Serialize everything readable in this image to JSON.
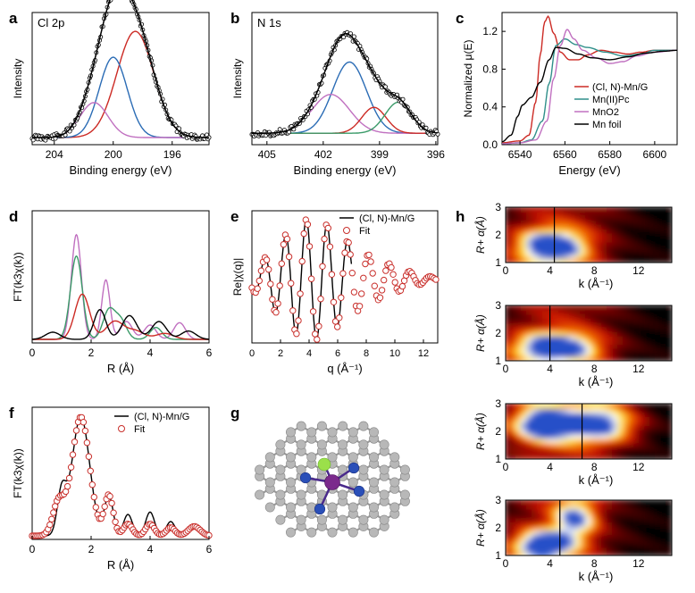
{
  "figure": {
    "colors": {
      "red": "#cc2a24",
      "blue": "#2b6cb5",
      "purple": "#c070c0",
      "green": "#3a9a68",
      "teal": "#2f8f8a",
      "black": "#000000",
      "circle": "#c9302c"
    }
  },
  "chart_data": [
    {
      "panel": "a",
      "type": "scatter",
      "title": "Cl 2p",
      "xlabel": "Binding energy (eV)",
      "ylabel": "Intensity",
      "xlim": [
        205.5,
        193.5
      ],
      "xticks": [
        "204",
        "200",
        "196"
      ],
      "xtick_values": [
        204,
        200,
        196
      ],
      "series": [
        {
          "name": "data",
          "style": "open-circles",
          "color": "black"
        },
        {
          "name": "envelope",
          "color": "black",
          "line_style": "solid"
        },
        {
          "name": "peak-198.5",
          "color": "red",
          "center": 198.5,
          "height": 0.82,
          "width": 1.25
        },
        {
          "name": "peak-200.0",
          "color": "blue",
          "center": 200.0,
          "height": 0.62,
          "width": 0.95
        },
        {
          "name": "peak-201.3",
          "color": "purple",
          "center": 201.3,
          "height": 0.27,
          "width": 0.95
        }
      ],
      "baseline": 0.1
    },
    {
      "panel": "b",
      "type": "scatter",
      "title": "N 1s",
      "xlabel": "Binding energy (eV)",
      "ylabel": "Intensity",
      "xlim": [
        405.8,
        395.9
      ],
      "xticks": [
        "405",
        "402",
        "399",
        "396"
      ],
      "xtick_values": [
        405,
        402,
        399,
        396
      ],
      "series": [
        {
          "name": "data",
          "style": "open-circles",
          "color": "black"
        },
        {
          "name": "envelope",
          "color": "black"
        },
        {
          "name": "peak-400.6",
          "color": "blue",
          "center": 400.6,
          "height": 0.55,
          "width": 0.9
        },
        {
          "name": "peak-401.6",
          "color": "purple",
          "center": 401.6,
          "height": 0.3,
          "width": 1.0
        },
        {
          "name": "peak-399.3",
          "color": "red",
          "center": 399.3,
          "height": 0.2,
          "width": 0.65
        },
        {
          "name": "peak-398.0",
          "color": "green",
          "center": 398.0,
          "height": 0.24,
          "width": 0.7
        }
      ],
      "baseline": 0.16
    },
    {
      "panel": "c",
      "type": "line",
      "title": "",
      "xlabel": "Energy (eV)",
      "ylabel": "Normalized μ(E)",
      "xlim": [
        6532,
        6610
      ],
      "ylim": [
        0,
        1.4
      ],
      "xticks": [
        "6540",
        "6560",
        "6580",
        "6600"
      ],
      "xtick_values": [
        6540,
        6560,
        6580,
        6600
      ],
      "yticks": [
        "0.0",
        "0.4",
        "0.8",
        "1.2"
      ],
      "ytick_values": [
        0,
        0.4,
        0.8,
        1.2
      ],
      "legend": [
        {
          "label": "(Cl, N)-Mn/G",
          "color": "red"
        },
        {
          "label": "Mn(II)Pc",
          "color": "teal"
        },
        {
          "label": "MnO2",
          "color": "purple"
        },
        {
          "label": "Mn foil",
          "color": "black"
        }
      ],
      "series": [
        {
          "name": "(Cl, N)-Mn/G",
          "color": "red",
          "x": [
            6532,
            6540,
            6544,
            6547,
            6549,
            6551,
            6552.5,
            6555,
            6558,
            6562,
            6566,
            6570,
            6576,
            6582,
            6588,
            6594,
            6600,
            6610
          ],
          "y": [
            0.02,
            0.04,
            0.1,
            0.45,
            0.95,
            1.3,
            1.36,
            1.18,
            0.98,
            0.9,
            0.9,
            0.95,
            1.0,
            0.98,
            0.96,
            0.98,
            1.0,
            1.0
          ]
        },
        {
          "name": "Mn(II)Pc",
          "color": "teal",
          "x": [
            6532,
            6540,
            6545,
            6550,
            6553,
            6556,
            6560,
            6565,
            6570,
            6578,
            6586,
            6594,
            6600,
            6610
          ],
          "y": [
            0.01,
            0.02,
            0.05,
            0.25,
            0.65,
            1.05,
            1.12,
            1.06,
            1.03,
            0.98,
            0.94,
            0.96,
            1.0,
            1.0
          ]
        },
        {
          "name": "MnO2",
          "color": "purple",
          "x": [
            6532,
            6540,
            6547,
            6552,
            6555,
            6558,
            6561,
            6564,
            6568,
            6574,
            6580,
            6586,
            6592,
            6600,
            6610
          ],
          "y": [
            0.01,
            0.02,
            0.05,
            0.25,
            0.7,
            1.05,
            1.22,
            1.12,
            1.0,
            0.92,
            0.86,
            0.88,
            0.94,
            0.98,
            1.0
          ]
        },
        {
          "name": "Mn foil",
          "color": "black",
          "x": [
            6532,
            6536,
            6539,
            6541,
            6545,
            6549,
            6553,
            6556,
            6560,
            6566,
            6572,
            6580,
            6588,
            6596,
            6604,
            6610
          ],
          "y": [
            0.03,
            0.1,
            0.3,
            0.42,
            0.5,
            0.66,
            0.9,
            1.03,
            1.02,
            0.96,
            0.92,
            0.9,
            0.93,
            0.97,
            0.99,
            1.0
          ]
        }
      ]
    },
    {
      "panel": "d",
      "type": "line",
      "title": "",
      "xlabel": "R (Å)",
      "ylabel": "FT(k3χ(k))",
      "xlim": [
        0,
        6
      ],
      "xticks": [
        "0",
        "2",
        "4",
        "6"
      ],
      "xtick_values": [
        0,
        2,
        4,
        6
      ],
      "series": [
        {
          "name": "MnO2",
          "color": "purple",
          "peaks": [
            [
              1.5,
              0.88,
              0.17
            ],
            [
              2.5,
              0.5,
              0.14
            ],
            [
              3.2,
              0.15,
              0.2
            ],
            [
              4.0,
              0.12,
              0.2
            ],
            [
              5.0,
              0.14,
              0.2
            ]
          ]
        },
        {
          "name": "Mn(II)Pc",
          "color": "green",
          "peaks": [
            [
              1.5,
              0.7,
              0.2
            ],
            [
              2.6,
              0.24,
              0.2
            ],
            [
              3.0,
              0.16,
              0.2
            ],
            [
              4.2,
              0.1,
              0.2
            ]
          ]
        },
        {
          "name": "(Cl, N)-Mn/G",
          "color": "red",
          "peaks": [
            [
              1.7,
              0.38,
              0.25
            ],
            [
              2.8,
              0.15,
              0.3
            ],
            [
              3.5,
              0.07,
              0.3
            ],
            [
              4.5,
              0.05,
              0.3
            ]
          ]
        },
        {
          "name": "Mn foil",
          "color": "black",
          "peaks": [
            [
              0.7,
              0.06,
              0.25
            ],
            [
              2.3,
              0.25,
              0.2
            ],
            [
              3.3,
              0.2,
              0.25
            ],
            [
              4.3,
              0.15,
              0.25
            ],
            [
              5.3,
              0.07,
              0.25
            ]
          ]
        }
      ]
    },
    {
      "panel": "e",
      "type": "line",
      "title": "",
      "xlabel": "q (Å⁻¹)",
      "ylabel": "Re|χ(q)|",
      "xlim": [
        0,
        13
      ],
      "xticks": [
        "0",
        "2",
        "4",
        "6",
        "8",
        "10",
        "12"
      ],
      "xtick_values": [
        0,
        2,
        4,
        6,
        8,
        10,
        12
      ],
      "legend": [
        {
          "label": "(Cl, N)-Mn/G",
          "color": "black",
          "style": "line"
        },
        {
          "label": "Fit",
          "color": "circle",
          "style": "circle"
        }
      ],
      "envelope_center": 4.0,
      "envelope_width": 2.2,
      "oscillation_period": 1.45
    },
    {
      "panel": "f",
      "type": "line",
      "title": "",
      "xlabel": "R (Å)",
      "ylabel": "FT(k3χ(k))",
      "xlim": [
        0,
        6
      ],
      "xticks": [
        "0",
        "2",
        "4",
        "6"
      ],
      "xtick_values": [
        0,
        2,
        4,
        6
      ],
      "legend": [
        {
          "label": "(Cl, N)-Mn/G",
          "color": "black",
          "style": "line"
        },
        {
          "label": "Fit",
          "color": "circle",
          "style": "circle"
        }
      ],
      "series": [
        {
          "name": "(Cl, N)-Mn/G",
          "color": "black",
          "peaks": [
            [
              1.0,
              0.35,
              0.15
            ],
            [
              1.65,
              1.0,
              0.3
            ],
            [
              2.6,
              0.33,
              0.15
            ],
            [
              3.25,
              0.18,
              0.15
            ],
            [
              4.0,
              0.2,
              0.15
            ],
            [
              4.7,
              0.12,
              0.15
            ],
            [
              5.5,
              0.1,
              0.2
            ]
          ]
        },
        {
          "name": "Fit",
          "color": "circle",
          "peaks": [
            [
              0.9,
              0.28,
              0.2
            ],
            [
              1.65,
              1.0,
              0.3
            ],
            [
              2.6,
              0.34,
              0.15
            ],
            [
              3.25,
              0.1,
              0.15
            ],
            [
              4.0,
              0.1,
              0.15
            ],
            [
              4.7,
              0.07,
              0.15
            ],
            [
              5.5,
              0.08,
              0.2
            ]
          ]
        }
      ]
    },
    {
      "panel": "h",
      "type": "heatmap",
      "xlabel": "k (Å⁻¹)",
      "ylabel": "R+ α(Å)",
      "xlim": [
        0,
        15
      ],
      "ylim": [
        1,
        3
      ],
      "xticks": [
        "0",
        "4",
        "8",
        "12"
      ],
      "xtick_values": [
        0,
        4,
        8,
        12
      ],
      "yticks": [
        "1",
        "2",
        "3"
      ],
      "ytick_values": [
        1,
        2,
        3
      ],
      "maps": [
        {
          "marker_k": 4.4,
          "hotspots": [
            {
              "k": 4.2,
              "r": 1.6,
              "amp": 1.0,
              "sk": 2.3,
              "sr": 0.45
            }
          ]
        },
        {
          "marker_k": 4.0,
          "hotspots": [
            {
              "k": 4.5,
              "r": 1.5,
              "amp": 1.0,
              "sk": 2.8,
              "sr": 0.4
            }
          ]
        },
        {
          "marker_k": 6.9,
          "hotspots": [
            {
              "k": 3.4,
              "r": 2.3,
              "amp": 0.95,
              "sk": 2.0,
              "sr": 0.45
            },
            {
              "k": 8.6,
              "r": 2.3,
              "amp": 0.9,
              "sk": 2.4,
              "sr": 0.5
            }
          ]
        },
        {
          "marker_k": 4.9,
          "hotspots": [
            {
              "k": 3.5,
              "r": 1.4,
              "amp": 1.0,
              "sk": 2.0,
              "sr": 0.38
            },
            {
              "k": 6.4,
              "r": 2.4,
              "amp": 0.7,
              "sk": 1.4,
              "sr": 0.5
            }
          ]
        }
      ]
    }
  ],
  "panel_labels": {
    "a": "a",
    "b": "b",
    "c": "c",
    "d": "d",
    "e": "e",
    "f": "f",
    "g": "g",
    "h": "h"
  },
  "structure": {
    "label": "g",
    "caption": "",
    "atoms": {
      "carbon_color": "#b8b8b8",
      "nitrogen_color": "#2a4fb8",
      "manganese_color": "#7b2a8c",
      "chlorine_color": "#9be04a"
    }
  }
}
